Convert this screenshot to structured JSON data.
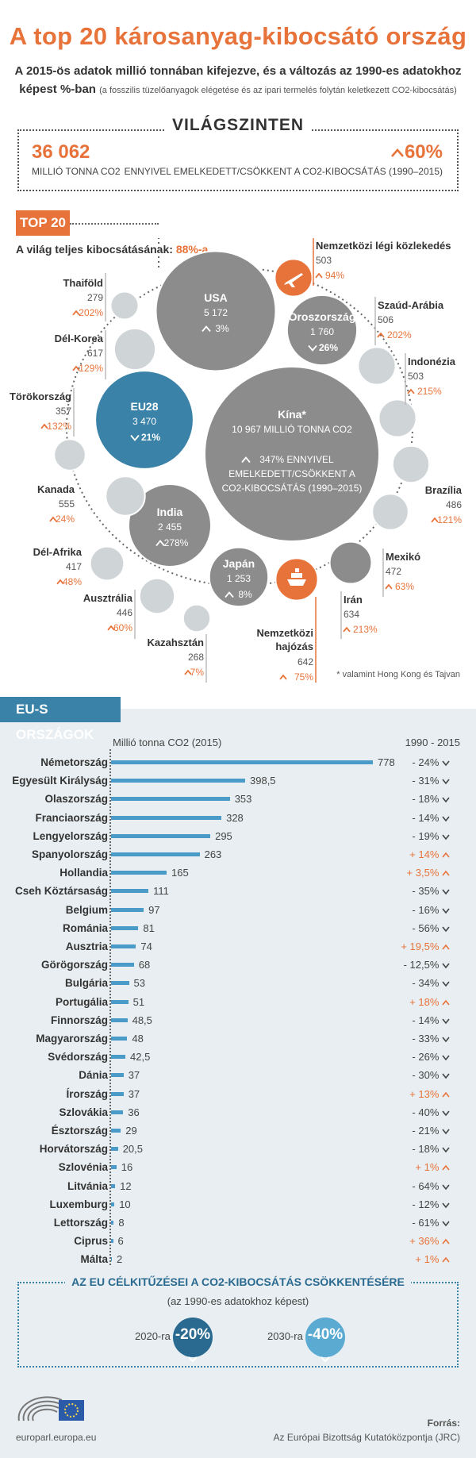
{
  "title": "A top 20 károsanyag-kibocsátó ország",
  "subtitle_line1": "A 2015-ös adatok millió tonnában kifejezve, és a változás az 1990-es adatokhoz",
  "subtitle_line2_bold": "képest %-ban",
  "subtitle_line2_small": "(a fosszilis tüzelőanyagok elégetése és az ipari termelés folytán keletkezett CO2-kibocsátás)",
  "world": {
    "heading": "VILÁGSZINTEN",
    "total": "36 062",
    "total_unit": "MILLIÓ TONNA CO2",
    "change": "60%",
    "change_desc": "ENNYIVEL EMELKEDETT/CSÖKKENT A CO2-KIBOCSÁTÁS (1990–2015)"
  },
  "top20": {
    "badge": "TOP 20",
    "share_label": "A világ teljes kibocsátásának:",
    "share_value": "88%-a",
    "footnote": "* valamint Hong Kong és Tajvan"
  },
  "chart_data": [
    {
      "type": "bubble",
      "title": "TOP 20",
      "unit": "millió tonna CO2 (2015)",
      "change_unit": "% (1990–2015)",
      "items": [
        {
          "name": "Kína*",
          "value": 10967,
          "value_label": "10 967 MILLIÓ TONNA CO2",
          "change": 347,
          "change_label": "347% ENNYIVEL EMELKEDETT/CSÖKKENT A CO2-KIBOCSÁTÁS (1990–2015)",
          "dir": "up"
        },
        {
          "name": "USA",
          "value": 5172,
          "value_label": "5 172",
          "change": 3,
          "change_label": "3%",
          "dir": "up"
        },
        {
          "name": "EU28",
          "value": 3470,
          "value_label": "3 470",
          "change": -21,
          "change_label": "21%",
          "dir": "down"
        },
        {
          "name": "India",
          "value": 2455,
          "value_label": "2 455",
          "change": 278,
          "change_label": "278%",
          "dir": "up"
        },
        {
          "name": "Oroszország",
          "value": 1760,
          "value_label": "1 760",
          "change": -26,
          "change_label": "26%",
          "dir": "down"
        },
        {
          "name": "Japán",
          "value": 1253,
          "value_label": "1 253",
          "change": 8,
          "change_label": "8%",
          "dir": "up"
        },
        {
          "name": "Nemzetközi hajózás",
          "value": 642,
          "value_label": "642",
          "change": 75,
          "change_label": "75%",
          "dir": "up"
        },
        {
          "name": "Irán",
          "value": 634,
          "value_label": "634",
          "change": 213,
          "change_label": "213%",
          "dir": "up"
        },
        {
          "name": "Dél-Korea",
          "value": 617,
          "value_label": "617",
          "change": 129,
          "change_label": "129%",
          "dir": "up"
        },
        {
          "name": "Kanada",
          "value": 555,
          "value_label": "555",
          "change": 24,
          "change_label": "24%",
          "dir": "up"
        },
        {
          "name": "Szaúd-Arábia",
          "value": 506,
          "value_label": "506",
          "change": 202,
          "change_label": "202%",
          "dir": "up"
        },
        {
          "name": "Nemzetközi légi közlekedés",
          "value": 503,
          "value_label": "503",
          "change": 94,
          "change_label": "94%",
          "dir": "up"
        },
        {
          "name": "Indonézia",
          "value": 503,
          "value_label": "503",
          "change": 215,
          "change_label": "215%",
          "dir": "up"
        },
        {
          "name": "Brazília",
          "value": 486,
          "value_label": "486",
          "change": 121,
          "change_label": "121%",
          "dir": "up"
        },
        {
          "name": "Mexikó",
          "value": 472,
          "value_label": "472",
          "change": 63,
          "change_label": "63%",
          "dir": "up"
        },
        {
          "name": "Ausztrália",
          "value": 446,
          "value_label": "446",
          "change": 60,
          "change_label": "60%",
          "dir": "up"
        },
        {
          "name": "Dél-Afrika",
          "value": 417,
          "value_label": "417",
          "change": 48,
          "change_label": "48%",
          "dir": "up"
        },
        {
          "name": "Törökország",
          "value": 357,
          "value_label": "357",
          "change": 132,
          "change_label": "132%",
          "dir": "up"
        },
        {
          "name": "Thaiföld",
          "value": 279,
          "value_label": "279",
          "change": 202,
          "change_label": "202%",
          "dir": "up"
        },
        {
          "name": "Kazahsztán",
          "value": 268,
          "value_label": "268",
          "change": 7,
          "change_label": "7%",
          "dir": "up"
        }
      ]
    },
    {
      "type": "bar",
      "title": "EU-S ORSZÁGOK",
      "ylabel": "Millió tonna CO2 (2015)",
      "change_header": "1990 - 2015",
      "categories": [
        "Németország",
        "Egyesült Királyság",
        "Olaszország",
        "Franciaország",
        "Lengyelország",
        "Spanyolország",
        "Hollandia",
        "Cseh Köztársaság",
        "Belgium",
        "Románia",
        "Ausztria",
        "Görögország",
        "Bulgária",
        "Portugália",
        "Finnország",
        "Magyarország",
        "Svédország",
        "Dánia",
        "Írország",
        "Szlovákia",
        "Észtország",
        "Horvátország",
        "Szlovénia",
        "Litvánia",
        "Luxemburg",
        "Lettország",
        "Ciprus",
        "Málta"
      ],
      "values": [
        778,
        398.5,
        353,
        328,
        295,
        263,
        165,
        111,
        97,
        81,
        74,
        68,
        53,
        51,
        48.5,
        48,
        42.5,
        37,
        37,
        36,
        29,
        20.5,
        16,
        12,
        10,
        8,
        6,
        2
      ],
      "value_labels": [
        "778",
        "398,5",
        "353",
        "328",
        "295",
        "263",
        "165",
        "111",
        "97",
        "81",
        "74",
        "68",
        "53",
        "51",
        "48,5",
        "48",
        "42,5",
        "37",
        "37",
        "36",
        "29",
        "20,5",
        "16",
        "12",
        "10",
        "8",
        "6",
        "2"
      ],
      "change_labels": [
        "- 24%",
        "- 31%",
        "- 18%",
        "- 14%",
        "- 19%",
        "+ 14%",
        "+ 3,5%",
        "- 35%",
        "- 16%",
        "- 56%",
        "+ 19,5%",
        "- 12,5%",
        "- 34%",
        "+ 18%",
        "- 14%",
        "- 33%",
        "- 26%",
        "- 30%",
        "+ 13%",
        "- 40%",
        "- 21%",
        "- 18%",
        "+ 1%",
        "- 64%",
        "- 12%",
        "- 61%",
        "+ 36%",
        "+ 1%"
      ],
      "change_dir": [
        "down",
        "down",
        "down",
        "down",
        "down",
        "up",
        "up",
        "down",
        "down",
        "down",
        "up",
        "down",
        "down",
        "up",
        "down",
        "down",
        "down",
        "down",
        "up",
        "down",
        "down",
        "down",
        "up",
        "down",
        "down",
        "down",
        "up",
        "up"
      ]
    }
  ],
  "eu": {
    "badge": "EU-S ORSZÁGOK",
    "value_header": "Millió tonna CO2 (2015)",
    "change_header": "1990 - 2015"
  },
  "targets": {
    "heading": "AZ EU CÉLKITŰZÉSEI A CO2-KIBOCSÁTÁS CSÖKKENTÉSÉRE",
    "sub": "(az 1990-es adatokhoz képest)",
    "t2020_label": "2020-ra",
    "t2020_value": "-20%",
    "t2030_label": "2030-ra",
    "t2030_value": "-40%"
  },
  "footer": {
    "site": "europarl.europa.eu",
    "source_label": "Forrás:",
    "source": "Az Európai Bizottság Kutatóközpontja (JRC)"
  },
  "colors": {
    "accent": "#e8733a",
    "blue": "#3a82a8",
    "bubble_grey": "#8c8c8c",
    "bubble_light": "#cfd4d7",
    "eu_blue": "#4a9bc7"
  }
}
